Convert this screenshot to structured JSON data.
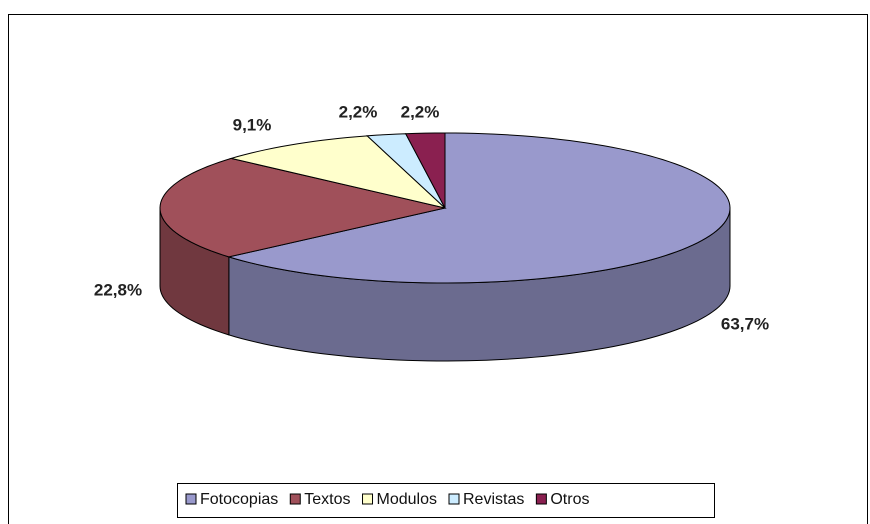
{
  "chart_data": {
    "type": "pie3d",
    "categories": [
      "Fotocopias",
      "Textos",
      "Modulos",
      "Revistas",
      "Otros"
    ],
    "values": [
      63.7,
      22.8,
      9.1,
      2.2,
      2.2
    ],
    "value_labels": [
      "63,7%",
      "22,8%",
      "9,1%",
      "2,2%",
      "2,2%"
    ],
    "colors": [
      "#9999cc",
      "#a0505a",
      "#ffffcc",
      "#ccecff",
      "#8a2050"
    ],
    "legend": "bottom"
  }
}
